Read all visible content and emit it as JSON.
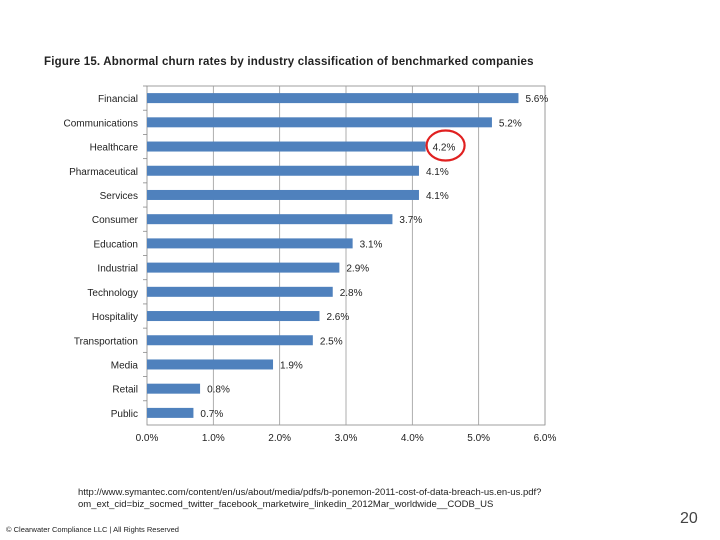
{
  "slide": {
    "source": "http://www.symantec.com/content/en/us/about/media/pdfs/b-ponemon-2011-cost-of-data-breach-us.en-us.pdf?om_ext_cid=biz_socmed_twitter_facebook_marketwire_linkedin_2012Mar_worldwide__CODB_US",
    "footer": "© Clearwater Compliance LLC | All Rights Reserved",
    "page_number": "20"
  },
  "chart_data": {
    "type": "bar",
    "orientation": "horizontal",
    "title": "Figure 15. Abnormal churn rates by industry classification of benchmarked companies",
    "categories": [
      "Financial",
      "Communications",
      "Healthcare",
      "Pharmaceutical",
      "Services",
      "Consumer",
      "Education",
      "Industrial",
      "Technology",
      "Hospitality",
      "Transportation",
      "Media",
      "Retail",
      "Public"
    ],
    "values": [
      5.6,
      5.2,
      4.2,
      4.1,
      4.1,
      3.7,
      3.1,
      2.9,
      2.8,
      2.6,
      2.5,
      1.9,
      0.8,
      0.7
    ],
    "value_labels": [
      "5.6%",
      "5.2%",
      "4.2%",
      "4.1%",
      "4.1%",
      "3.7%",
      "3.1%",
      "2.9%",
      "2.8%",
      "2.6%",
      "2.5%",
      "1.9%",
      "0.8%",
      "0.7%"
    ],
    "xlim": [
      0,
      6
    ],
    "ticks": [
      0,
      1,
      2,
      3,
      4,
      5,
      6
    ],
    "tick_labels": [
      "0.0%",
      "1.0%",
      "2.0%",
      "3.0%",
      "4.0%",
      "5.0%",
      "6.0%"
    ],
    "grid": true,
    "bar_color": "#4f81bd",
    "highlight": {
      "category": "Healthcare",
      "color": "#e02020"
    }
  }
}
